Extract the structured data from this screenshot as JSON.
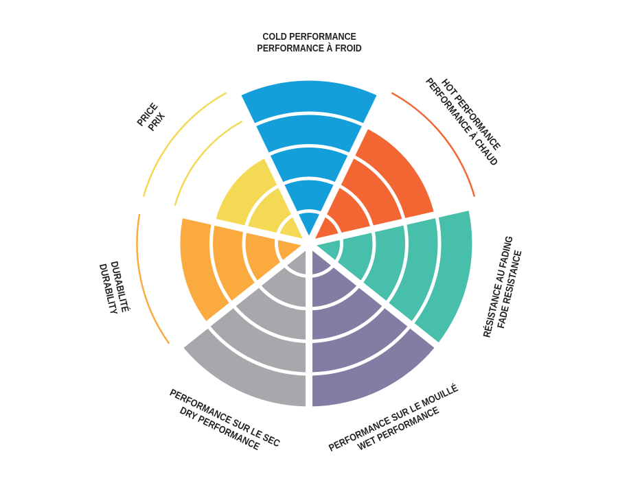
{
  "chart_data": {
    "type": "polar-bar",
    "max_level": 5,
    "categories": [
      {
        "lines": [
          "COLD PERFORMANCE",
          "PERFORMANCE À FROID"
        ],
        "value": 5,
        "color": "#159FDA"
      },
      {
        "lines": [
          "HOT PERFORMANCE",
          "PERFORMANCE À CHAUD"
        ],
        "value": 4,
        "color": "#F26634"
      },
      {
        "lines": [
          "RÉSISTANCE AU FADING",
          "FADE RESISTANCE"
        ],
        "value": 5,
        "color": "#47BFAA"
      },
      {
        "lines": [
          "PERFORMANCE SUR LE MOUILLÉ",
          "WET PERFORMANCE"
        ],
        "value": 5,
        "color": "#857CA3"
      },
      {
        "lines": [
          "PERFORMANCE SUR LE SEC",
          "DRY PERFORMANCE"
        ],
        "value": 5,
        "color": "#A7A8AB"
      },
      {
        "lines": [
          "DURABILITÉ",
          "DURABILITY"
        ],
        "value": 4,
        "color": "#FBAA3F"
      },
      {
        "lines": [
          "PRICE",
          "PRIX"
        ],
        "value": 3,
        "color": "#F4D955"
      }
    ],
    "grid": true,
    "legend": "none"
  }
}
